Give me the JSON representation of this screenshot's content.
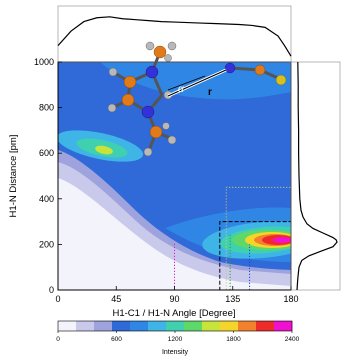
{
  "chart_data": {
    "type": "contour",
    "xlabel": "H1-C1 / H1-N Angle [Degree]",
    "ylabel": "H1-N Distance [pm]",
    "xlim": [
      0,
      180
    ],
    "xticks": [
      0,
      45,
      90,
      135,
      180
    ],
    "ylim": [
      0,
      1000
    ],
    "yticks": [
      0,
      200,
      400,
      600,
      800,
      1000
    ],
    "annotations": [
      "α",
      "r"
    ],
    "colorbar": {
      "label": "Intensity",
      "lim": [
        0,
        2400
      ],
      "ticks": [
        0,
        600,
        1200,
        1800,
        2400
      ],
      "colors": [
        "#f3f3fb",
        "#c9c9ec",
        "#9ea3dd",
        "#2f6ad8",
        "#2f86e4",
        "#3fb4e6",
        "#3fd0b0",
        "#5fd86a",
        "#c8e43a",
        "#f5d52a",
        "#f3802a",
        "#ee2a2a",
        "#f010d0"
      ]
    },
    "guides": [
      {
        "color": "#e020c0",
        "style": "dotted",
        "x": [
          90,
          90
        ],
        "y": [
          0,
          210
        ]
      },
      {
        "color": "#e020c0",
        "style": "dotted",
        "x": [
          90,
          180
        ],
        "y": [
          0,
          0
        ]
      },
      {
        "color": "#c8c870",
        "style": "dotted",
        "x": [
          130,
          180,
          180,
          130,
          130
        ],
        "y": [
          0,
          0,
          450,
          450,
          0
        ]
      },
      {
        "color": "#000000",
        "style": "dashed",
        "x": [
          125,
          180,
          180,
          125,
          125
        ],
        "y": [
          0,
          0,
          300,
          300,
          0
        ]
      },
      {
        "color": "#2040e0",
        "style": "dotted",
        "x": [
          148,
          148
        ],
        "y": [
          0,
          200
        ]
      },
      {
        "color": "#30a030",
        "style": "dotted",
        "x": [
          133,
          133
        ],
        "y": [
          0,
          250
        ]
      }
    ],
    "top_marginal": {
      "x": [
        0,
        10,
        20,
        30,
        40,
        50,
        60,
        70,
        80,
        90,
        100,
        110,
        120,
        130,
        140,
        150,
        160,
        170,
        175,
        180
      ],
      "values": [
        0.3,
        0.6,
        0.8,
        0.88,
        0.9,
        0.86,
        0.84,
        0.82,
        0.8,
        0.79,
        0.78,
        0.77,
        0.76,
        0.75,
        0.74,
        0.72,
        0.68,
        0.5,
        0.3,
        0.08
      ]
    },
    "right_marginal": {
      "y": [
        0,
        50,
        100,
        130,
        150,
        170,
        190,
        210,
        220,
        230,
        250,
        270,
        290,
        320,
        350,
        400,
        500,
        600,
        700,
        800,
        900,
        1000
      ],
      "values": [
        0,
        0.02,
        0.05,
        0.12,
        0.3,
        0.6,
        0.9,
        1.0,
        0.98,
        0.9,
        0.65,
        0.4,
        0.25,
        0.15,
        0.1,
        0.07,
        0.05,
        0.04,
        0.04,
        0.03,
        0.03,
        0.02
      ]
    }
  }
}
